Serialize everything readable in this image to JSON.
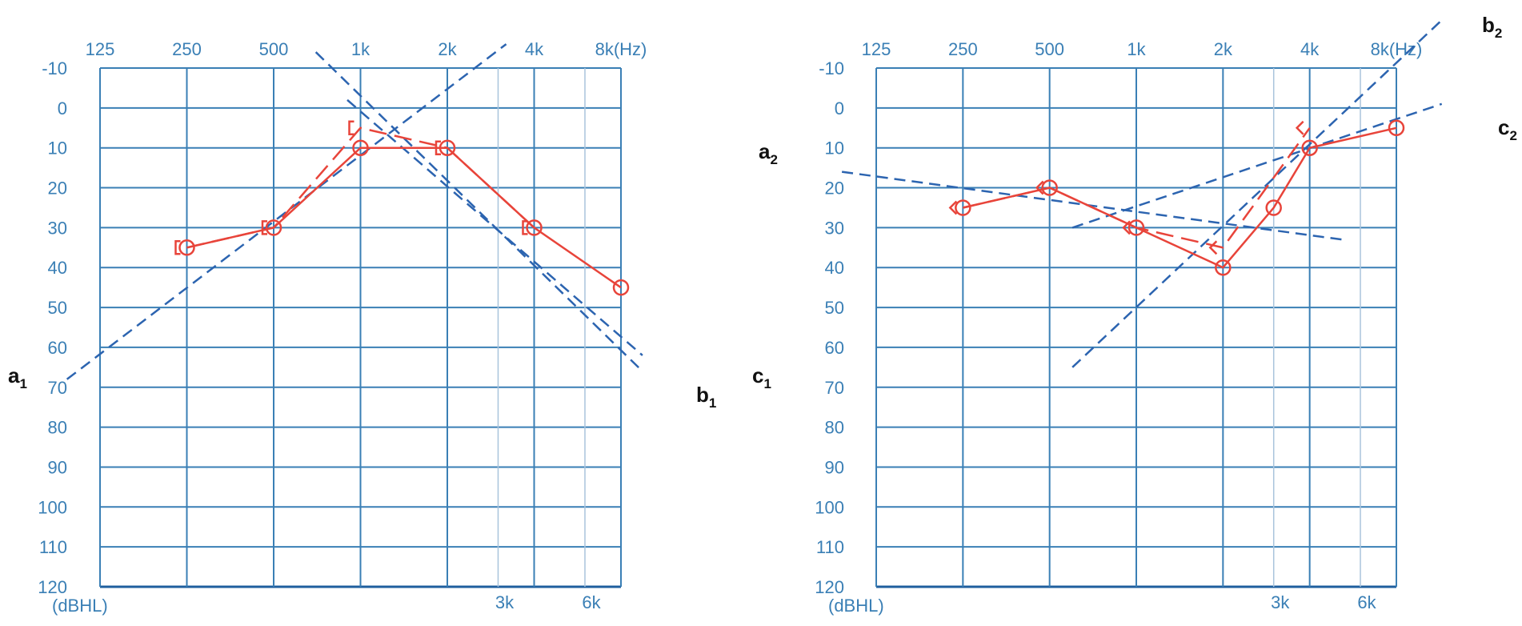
{
  "chart_data": [
    {
      "type": "line",
      "x_tick_labels": [
        "125",
        "250",
        "500",
        "1k",
        "2k",
        "4k",
        "8k(Hz)"
      ],
      "x_tick_labels_bottom": [
        "3k",
        "6k"
      ],
      "y_tick_labels": [
        "-10",
        "0",
        "10",
        "20",
        "30",
        "40",
        "50",
        "60",
        "70",
        "80",
        "90",
        "100",
        "110",
        "120"
      ],
      "ylabel": "(dBHL)",
      "ylim": [
        -10,
        120
      ],
      "x_octaves": [
        125,
        250,
        500,
        1000,
        2000,
        4000,
        8000
      ],
      "x_interoctaves": [
        3000,
        6000
      ],
      "series": [
        {
          "x": [
            250,
            500,
            1000,
            2000,
            4000,
            8000
          ],
          "y": [
            35,
            30,
            10,
            10,
            30,
            45
          ],
          "style": "solid",
          "marker": "circle",
          "color": "#e8443a"
        },
        {
          "x": [
            250,
            500,
            1000,
            2000,
            4000
          ],
          "y": [
            35,
            30,
            5,
            10,
            30
          ],
          "style": "dashed",
          "marker": "bracket",
          "color": "#e8443a"
        }
      ],
      "fit_lines": [
        {
          "label_main": "a",
          "label_sub": "1",
          "from": {
            "x": 96,
            "y": 68
          },
          "to": {
            "x": 3200,
            "y": -16
          }
        },
        {
          "label_main": "b",
          "label_sub": "1",
          "from": {
            "x": 700,
            "y": -14
          },
          "to": {
            "x": 9500,
            "y": 66
          }
        },
        {
          "label_main": "c",
          "label_sub": "1",
          "from": {
            "x": 900,
            "y": -2
          },
          "to": {
            "x": 9500,
            "y": 62
          }
        }
      ]
    },
    {
      "type": "line",
      "x_tick_labels": [
        "125",
        "250",
        "500",
        "1k",
        "2k",
        "4k",
        "8k(Hz)"
      ],
      "x_tick_labels_bottom": [
        "3k",
        "6k"
      ],
      "y_tick_labels": [
        "-10",
        "0",
        "10",
        "20",
        "30",
        "40",
        "50",
        "60",
        "70",
        "80",
        "90",
        "100",
        "110",
        "120"
      ],
      "ylabel": "(dBHL)",
      "ylim": [
        -10,
        120
      ],
      "x_octaves": [
        125,
        250,
        500,
        1000,
        2000,
        4000,
        8000
      ],
      "x_interoctaves": [
        3000,
        6000
      ],
      "series": [
        {
          "x": [
            250,
            500,
            1000,
            2000,
            3000,
            4000,
            8000
          ],
          "y": [
            25,
            20,
            30,
            40,
            25,
            10,
            5
          ],
          "style": "solid",
          "marker": "circle",
          "color": "#e8443a"
        },
        {
          "x": [
            250,
            500,
            1000,
            2000,
            4000
          ],
          "y": [
            25,
            20,
            30,
            35,
            5
          ],
          "style": "dashed",
          "marker": "chevron",
          "color": "#e8443a"
        }
      ],
      "fit_lines": [
        {
          "label_main": "a",
          "label_sub": "2",
          "from": {
            "x": 95,
            "y": 16
          },
          "to": {
            "x": 5200,
            "y": 33
          }
        },
        {
          "label_main": "b",
          "label_sub": "2",
          "from": {
            "x": 600,
            "y": 65
          },
          "to": {
            "x": 11500,
            "y": -22
          }
        },
        {
          "label_main": "c",
          "label_sub": "2",
          "from": {
            "x": 600,
            "y": 30
          },
          "to": {
            "x": 11500,
            "y": -1
          }
        }
      ]
    }
  ]
}
